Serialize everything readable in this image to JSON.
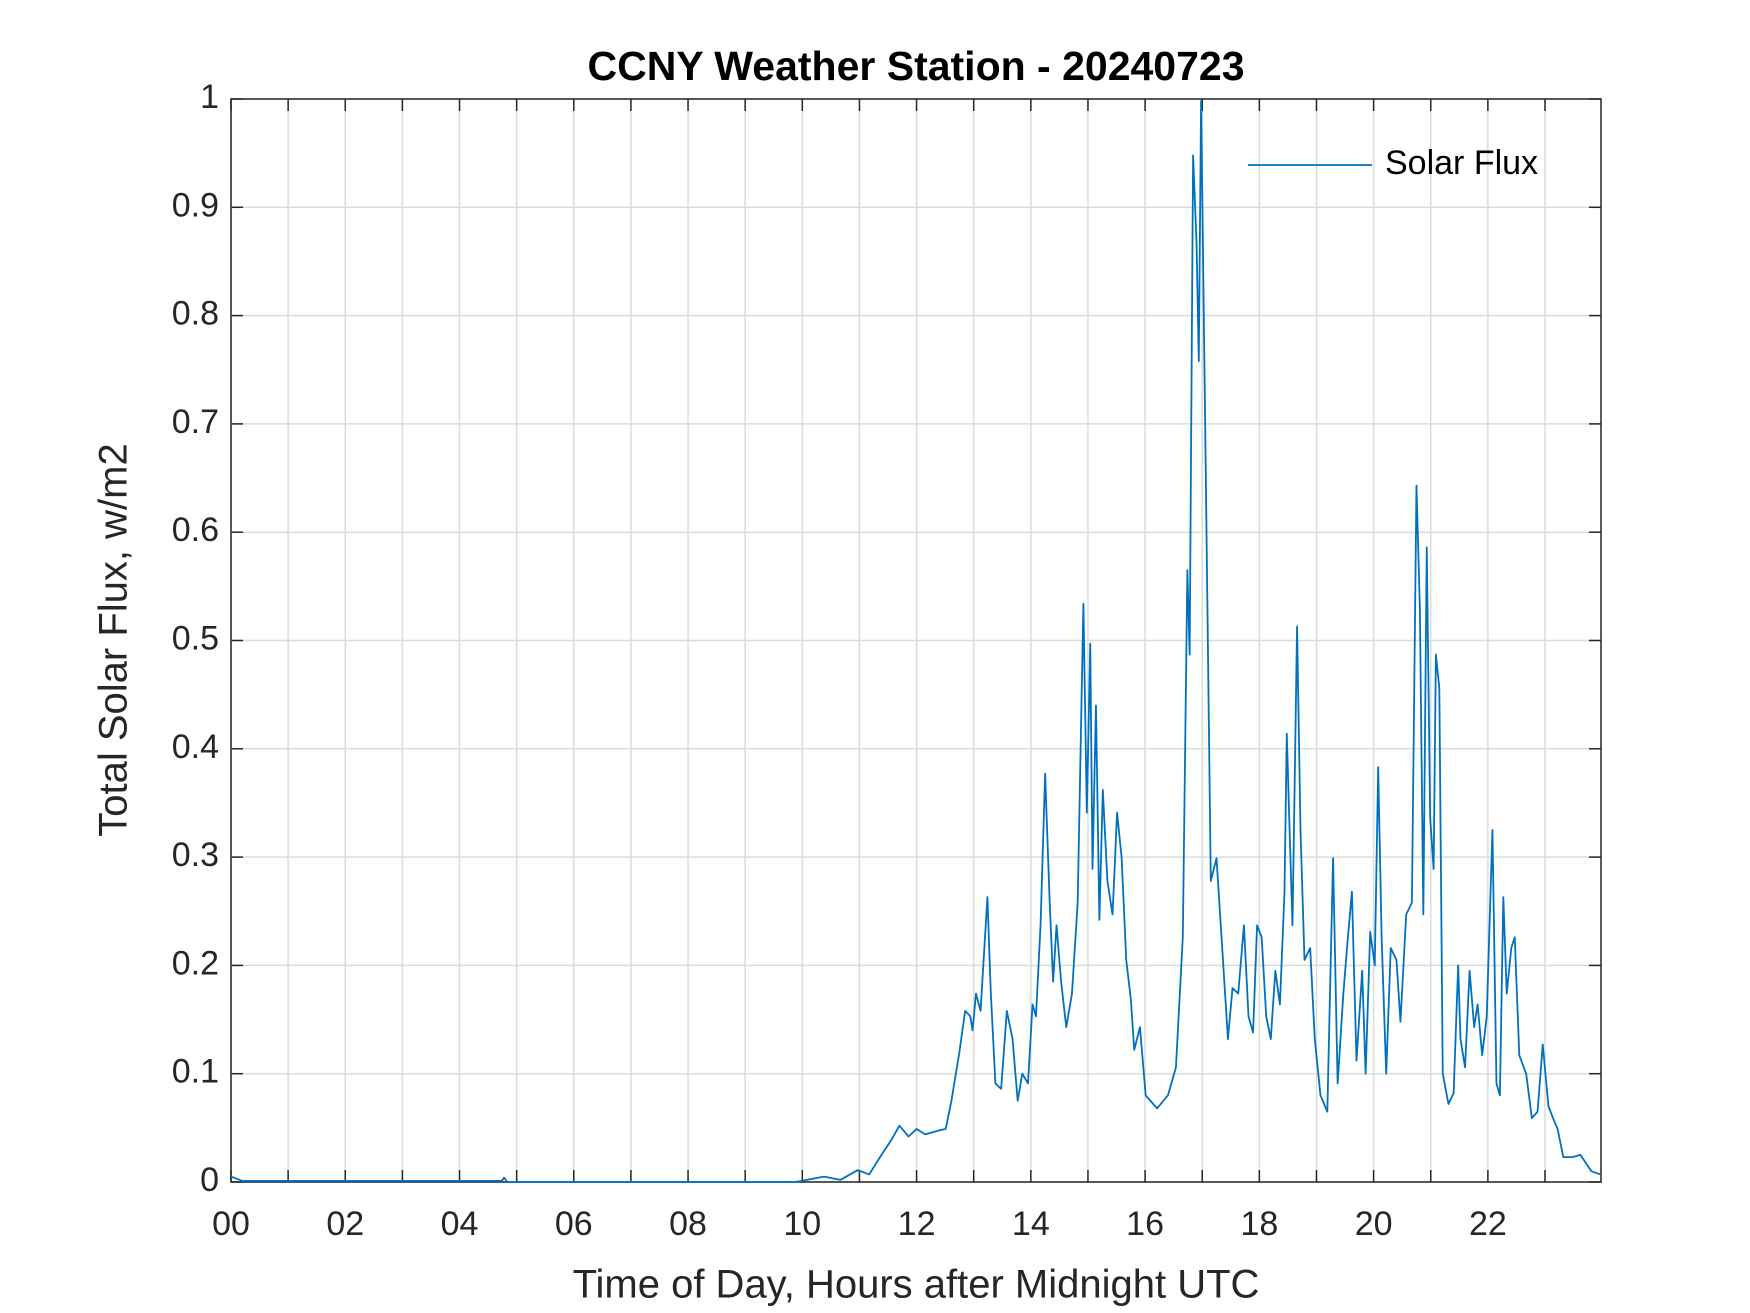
{
  "chart_data": {
    "type": "line",
    "title": "CCNY Weather Station - 20240723",
    "xlabel": "Time of Day, Hours after Midnight UTC",
    "ylabel": "Total Solar Flux, w/m2",
    "xlim": [
      0,
      23.98
    ],
    "ylim": [
      0,
      1
    ],
    "xticks": [
      {
        "value": 0,
        "label": "00"
      },
      {
        "value": 2,
        "label": "02"
      },
      {
        "value": 4,
        "label": "04"
      },
      {
        "value": 6,
        "label": "06"
      },
      {
        "value": 8,
        "label": "08"
      },
      10,
      12,
      14,
      16,
      18,
      20,
      22
    ],
    "xminorticks": [
      1,
      3,
      5,
      7,
      9,
      11,
      13,
      15,
      17,
      19,
      21,
      23
    ],
    "yticks": [
      0,
      0.1,
      0.2,
      0.3,
      0.4,
      0.5,
      0.6,
      0.7,
      0.8,
      0.9,
      1
    ],
    "grid": true,
    "legend": "upper right",
    "series": [
      {
        "name": "Solar Flux",
        "color": "#0072bd",
        "x": [
          0,
          0.2,
          4.74,
          4.78,
          4.84,
          9.88,
          10.38,
          10.67,
          10.97,
          11.17,
          11.36,
          11.56,
          11.7,
          11.86,
          12.0,
          12.15,
          12.35,
          12.51,
          12.61,
          12.75,
          12.85,
          12.94,
          12.98,
          13.04,
          13.12,
          13.24,
          13.3,
          13.38,
          13.48,
          13.58,
          13.68,
          13.77,
          13.85,
          13.95,
          14.03,
          14.09,
          14.17,
          14.25,
          14.33,
          14.39,
          14.45,
          14.53,
          14.62,
          14.72,
          14.82,
          14.92,
          14.98,
          15.04,
          15.08,
          15.14,
          15.2,
          15.26,
          15.34,
          15.43,
          15.51,
          15.59,
          15.67,
          15.75,
          15.81,
          15.91,
          16.01,
          16.21,
          16.4,
          16.54,
          16.66,
          16.74,
          16.78,
          16.84,
          16.9,
          16.94,
          16.98,
          17.06,
          17.15,
          17.25,
          17.35,
          17.45,
          17.53,
          17.63,
          17.73,
          17.81,
          17.89,
          17.96,
          18.04,
          18.12,
          18.2,
          18.28,
          18.36,
          18.44,
          18.48,
          18.52,
          18.58,
          18.66,
          18.72,
          18.79,
          18.89,
          18.97,
          19.07,
          19.19,
          19.29,
          19.37,
          19.47,
          19.55,
          19.62,
          19.7,
          19.8,
          19.86,
          19.94,
          20.02,
          20.08,
          20.14,
          20.22,
          20.3,
          20.4,
          20.47,
          20.57,
          20.67,
          20.75,
          20.81,
          20.87,
          20.93,
          20.99,
          21.05,
          21.09,
          21.15,
          21.21,
          21.31,
          21.4,
          21.48,
          21.52,
          21.6,
          21.68,
          21.76,
          21.82,
          21.9,
          21.98,
          22.08,
          22.15,
          22.21,
          22.27,
          22.33,
          22.41,
          22.47,
          22.55,
          22.67,
          22.77,
          22.87,
          22.96,
          23.06,
          23.14,
          23.22,
          23.32,
          23.48,
          23.62,
          23.81,
          23.97
        ],
        "values": [
          0.005,
          0.001,
          0.001,
          0.004,
          0,
          0,
          0.005,
          0.002,
          0.011,
          0.007,
          0.023,
          0.039,
          0.052,
          0.042,
          0.049,
          0.044,
          0.047,
          0.049,
          0.075,
          0.12,
          0.158,
          0.153,
          0.14,
          0.174,
          0.158,
          0.263,
          0.174,
          0.091,
          0.086,
          0.158,
          0.132,
          0.075,
          0.1,
          0.091,
          0.164,
          0.153,
          0.237,
          0.377,
          0.258,
          0.185,
          0.237,
          0.185,
          0.143,
          0.174,
          0.258,
          0.534,
          0.341,
          0.497,
          0.289,
          0.44,
          0.242,
          0.362,
          0.278,
          0.247,
          0.341,
          0.299,
          0.205,
          0.169,
          0.122,
          0.143,
          0.08,
          0.068,
          0.08,
          0.106,
          0.226,
          0.565,
          0.487,
          0.948,
          0.868,
          0.758,
          0.998,
          0.664,
          0.278,
          0.299,
          0.216,
          0.132,
          0.179,
          0.174,
          0.237,
          0.153,
          0.138,
          0.237,
          0.226,
          0.153,
          0.132,
          0.195,
          0.164,
          0.268,
          0.414,
          0.341,
          0.237,
          0.513,
          0.325,
          0.205,
          0.216,
          0.132,
          0.08,
          0.065,
          0.299,
          0.091,
          0.174,
          0.226,
          0.268,
          0.112,
          0.195,
          0.1,
          0.231,
          0.2,
          0.383,
          0.226,
          0.1,
          0.216,
          0.205,
          0.148,
          0.247,
          0.258,
          0.643,
          0.529,
          0.247,
          0.586,
          0.336,
          0.289,
          0.487,
          0.456,
          0.1,
          0.072,
          0.082,
          0.2,
          0.132,
          0.106,
          0.195,
          0.143,
          0.164,
          0.117,
          0.153,
          0.325,
          0.091,
          0.08,
          0.263,
          0.174,
          0.216,
          0.226,
          0.117,
          0.1,
          0.059,
          0.065,
          0.127,
          0.07,
          0.059,
          0.049,
          0.023,
          0.023,
          0.025,
          0.01,
          0.007
        ]
      }
    ]
  }
}
